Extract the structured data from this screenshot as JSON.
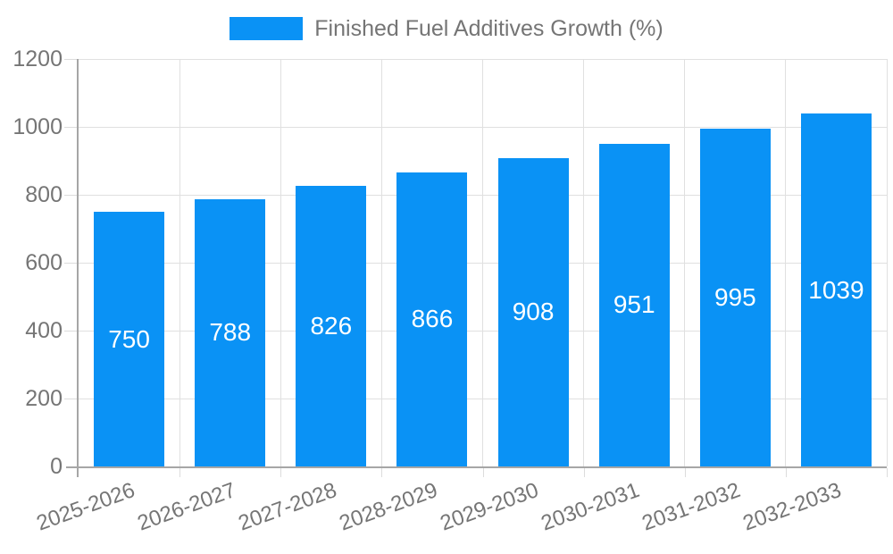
{
  "chart_data": {
    "type": "bar",
    "title": "",
    "legend_label": "Finished Fuel Additives Growth (%)",
    "legend_position": "top",
    "categories": [
      "2025-2026",
      "2026-2027",
      "2027-2028",
      "2028-2029",
      "2029-2030",
      "2030-2031",
      "2031-2032",
      "2032-2033"
    ],
    "values": [
      750,
      788,
      826,
      866,
      908,
      951,
      995,
      1039
    ],
    "xlabel": "",
    "ylabel": "",
    "ylim": [
      0,
      1200
    ],
    "yticks": [
      0,
      200,
      400,
      600,
      800,
      1000,
      1200
    ],
    "grid": true,
    "value_labels": "inside-center",
    "x_tick_rotation_deg": -20,
    "colors": {
      "bar": "#0a92f5",
      "value_label": "#ffffff",
      "axis_line": "#a6a6a6",
      "gridline": "#e0e0e0",
      "tick_text": "#757575",
      "legend_text": "#757575",
      "background": "#ffffff"
    }
  }
}
